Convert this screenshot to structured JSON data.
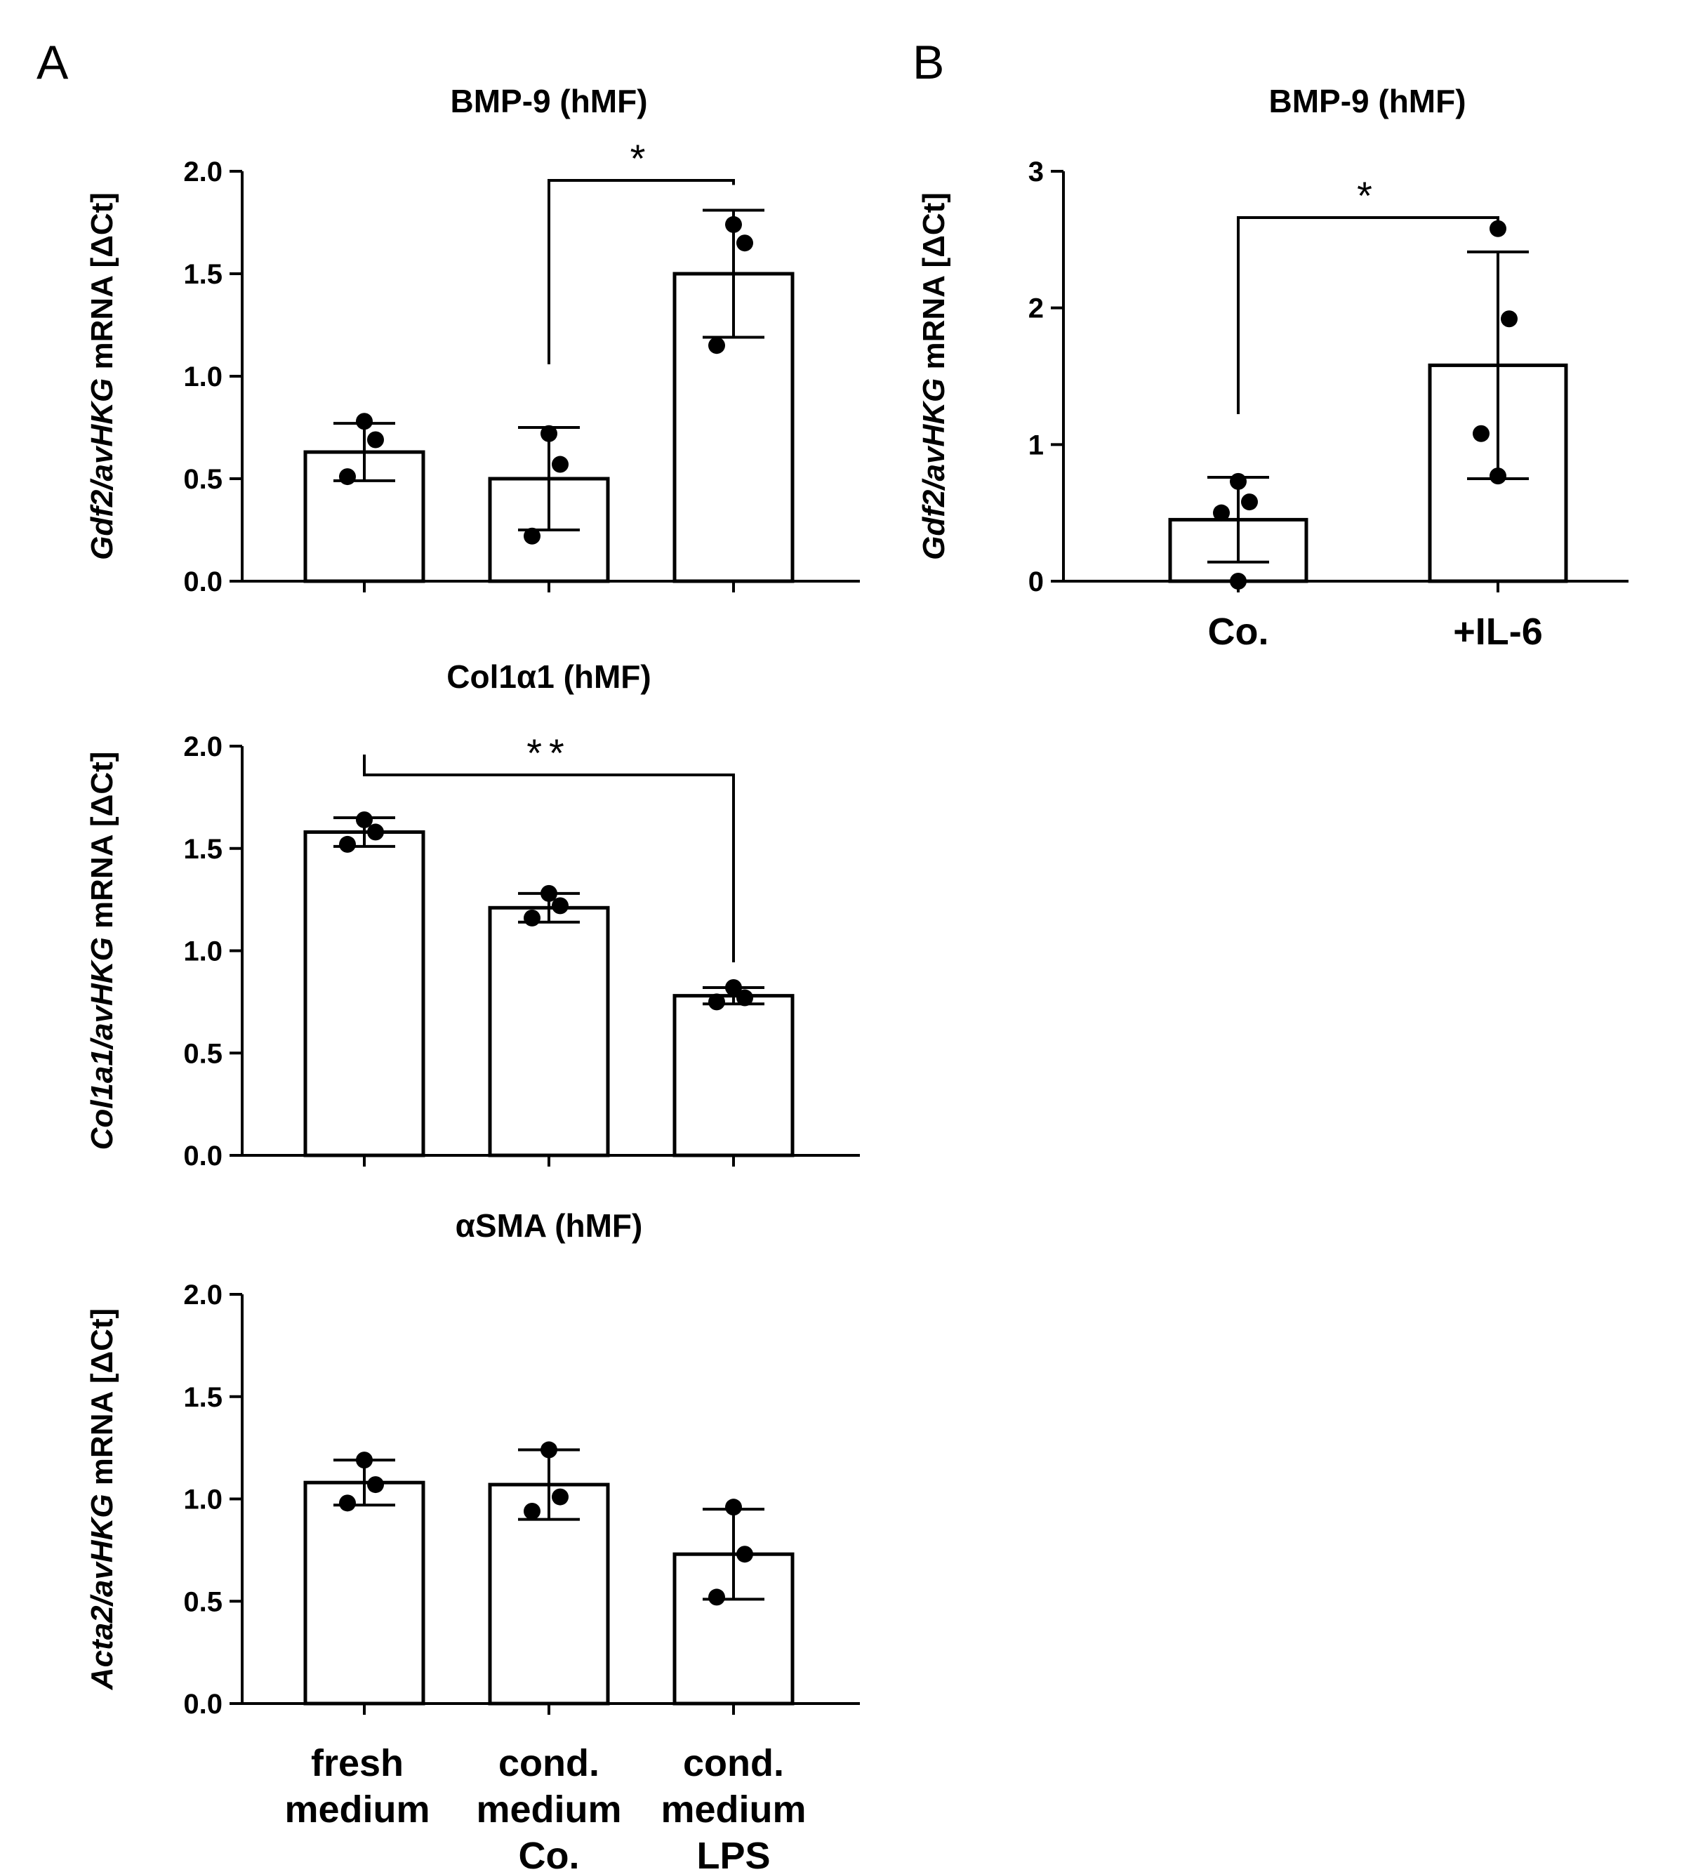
{
  "panels": [
    {
      "letter": "A"
    },
    {
      "letter": "B"
    }
  ],
  "chart_data": [
    {
      "type": "bar",
      "panel": "A",
      "title": "BMP-9 (hMF)",
      "ylabel_parts": [
        {
          "text": "Gdf2/avHKG",
          "italic": true
        },
        {
          "text": " mRNA [ΔCt]",
          "italic": false
        }
      ],
      "categories": [
        "fresh medium",
        "cond. medium Co.",
        "cond. medium LPS"
      ],
      "values": [
        0.63,
        0.5,
        1.5
      ],
      "error": [
        0.14,
        0.25,
        0.31
      ],
      "points": [
        [
          0.78,
          0.69,
          0.51
        ],
        [
          0.72,
          0.57,
          0.22
        ],
        [
          1.74,
          1.65,
          1.15
        ]
      ],
      "ylim": [
        0,
        2.0
      ],
      "yticks": [
        "0.0",
        "0.5",
        "1.0",
        "1.5",
        "2.0"
      ],
      "ytick_values": [
        0,
        0.5,
        1.0,
        1.5,
        2.0
      ],
      "show_category_labels": false,
      "significance": [
        {
          "from": 1,
          "to": 2,
          "label": "*"
        }
      ]
    },
    {
      "type": "bar",
      "panel": "A",
      "title": "Col1α1 (hMF)",
      "ylabel_parts": [
        {
          "text": "Col1a1/avHKG",
          "italic": true
        },
        {
          "text": " mRNA [ΔCt]",
          "italic": false
        }
      ],
      "categories": [
        "fresh medium",
        "cond. medium Co.",
        "cond. medium LPS"
      ],
      "values": [
        1.58,
        1.21,
        0.78
      ],
      "error": [
        0.07,
        0.07,
        0.04
      ],
      "points": [
        [
          1.64,
          1.58,
          1.52
        ],
        [
          1.28,
          1.22,
          1.16
        ],
        [
          0.82,
          0.77,
          0.75
        ]
      ],
      "ylim": [
        0,
        2.0
      ],
      "yticks": [
        "0.0",
        "0.5",
        "1.0",
        "1.5",
        "2.0"
      ],
      "ytick_values": [
        0,
        0.5,
        1.0,
        1.5,
        2.0
      ],
      "show_category_labels": false,
      "significance": [
        {
          "from": 0,
          "to": 2,
          "label": "**"
        }
      ]
    },
    {
      "type": "bar",
      "panel": "A",
      "title": "αSMA (hMF)",
      "ylabel_parts": [
        {
          "text": "Acta2/avHKG",
          "italic": true
        },
        {
          "text": " mRNA [ΔCt]",
          "italic": false
        }
      ],
      "categories": [
        "fresh medium",
        "cond. medium Co.",
        "cond. medium LPS"
      ],
      "category_lines": [
        [
          "fresh",
          "medium"
        ],
        [
          "cond.",
          "medium",
          "Co."
        ],
        [
          "cond.",
          "medium",
          "LPS"
        ]
      ],
      "values": [
        1.08,
        1.07,
        0.73
      ],
      "error": [
        0.11,
        0.17,
        0.22
      ],
      "points": [
        [
          1.19,
          1.07,
          0.98
        ],
        [
          1.24,
          1.01,
          0.94
        ],
        [
          0.96,
          0.73,
          0.52
        ]
      ],
      "ylim": [
        0,
        2.0
      ],
      "yticks": [
        "0.0",
        "0.5",
        "1.0",
        "1.5",
        "2.0"
      ],
      "ytick_values": [
        0,
        0.5,
        1.0,
        1.5,
        2.0
      ],
      "show_category_labels": true,
      "significance": []
    },
    {
      "type": "bar",
      "panel": "B",
      "title": "BMP-9 (hMF)",
      "ylabel_parts": [
        {
          "text": "Gdf2/avHKG",
          "italic": true
        },
        {
          "text": " mRNA [ΔCt]",
          "italic": false
        }
      ],
      "categories": [
        "Co.",
        "+IL-6"
      ],
      "category_lines": [
        [
          "Co."
        ],
        [
          "+IL-6"
        ]
      ],
      "values": [
        0.45,
        1.58
      ],
      "error": [
        0.31,
        0.83
      ],
      "points": [
        [
          0.73,
          0.58,
          0.5,
          0.0
        ],
        [
          2.58,
          1.92,
          1.08,
          0.77
        ]
      ],
      "ylim": [
        0,
        3
      ],
      "yticks": [
        "0",
        "1",
        "2",
        "3"
      ],
      "ytick_values": [
        0,
        1,
        2,
        3
      ],
      "show_category_labels": true,
      "significance": [
        {
          "from": 0,
          "to": 1,
          "label": "*"
        }
      ]
    }
  ]
}
